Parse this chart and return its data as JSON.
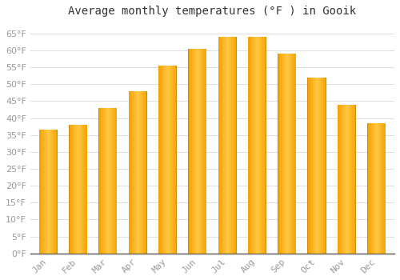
{
  "title": "Average monthly temperatures (°F ) in Gooik",
  "months": [
    "Jan",
    "Feb",
    "Mar",
    "Apr",
    "May",
    "Jun",
    "Jul",
    "Aug",
    "Sep",
    "Oct",
    "Nov",
    "Dec"
  ],
  "values": [
    36.5,
    38,
    43,
    48,
    55.5,
    60.5,
    64,
    64,
    59,
    52,
    44,
    38.5
  ],
  "bar_color_center": "#FFC844",
  "bar_color_edge": "#F5A000",
  "background_color": "#FFFFFF",
  "plot_bg_color": "#FFFFFF",
  "grid_color": "#DDDDDD",
  "ylim": [
    0,
    68
  ],
  "yticks": [
    0,
    5,
    10,
    15,
    20,
    25,
    30,
    35,
    40,
    45,
    50,
    55,
    60,
    65
  ],
  "title_fontsize": 10,
  "tick_fontsize": 8,
  "tick_color": "#999999",
  "title_color": "#333333",
  "bottom_spine_color": "#555555"
}
